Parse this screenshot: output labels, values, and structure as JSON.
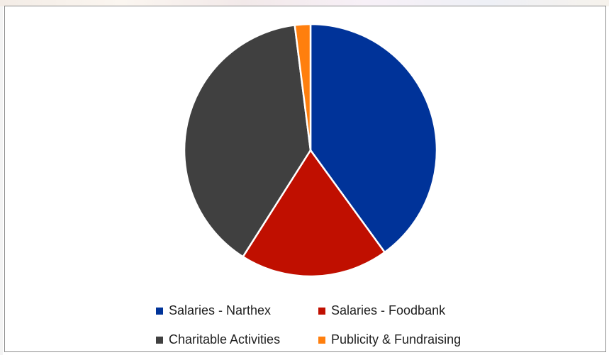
{
  "chart_data": {
    "type": "pie",
    "categories": [
      "Salaries - Narthex",
      "Salaries - Foodbank",
      "Charitable Activities",
      "Publicity & Fundraising"
    ],
    "values": [
      40,
      19,
      39,
      2
    ],
    "colors": [
      "#003399",
      "#C00F00",
      "#404040",
      "#FF7F0E"
    ],
    "legend_position": "bottom",
    "title": "",
    "start_angle_deg": 0,
    "direction": "clockwise"
  }
}
